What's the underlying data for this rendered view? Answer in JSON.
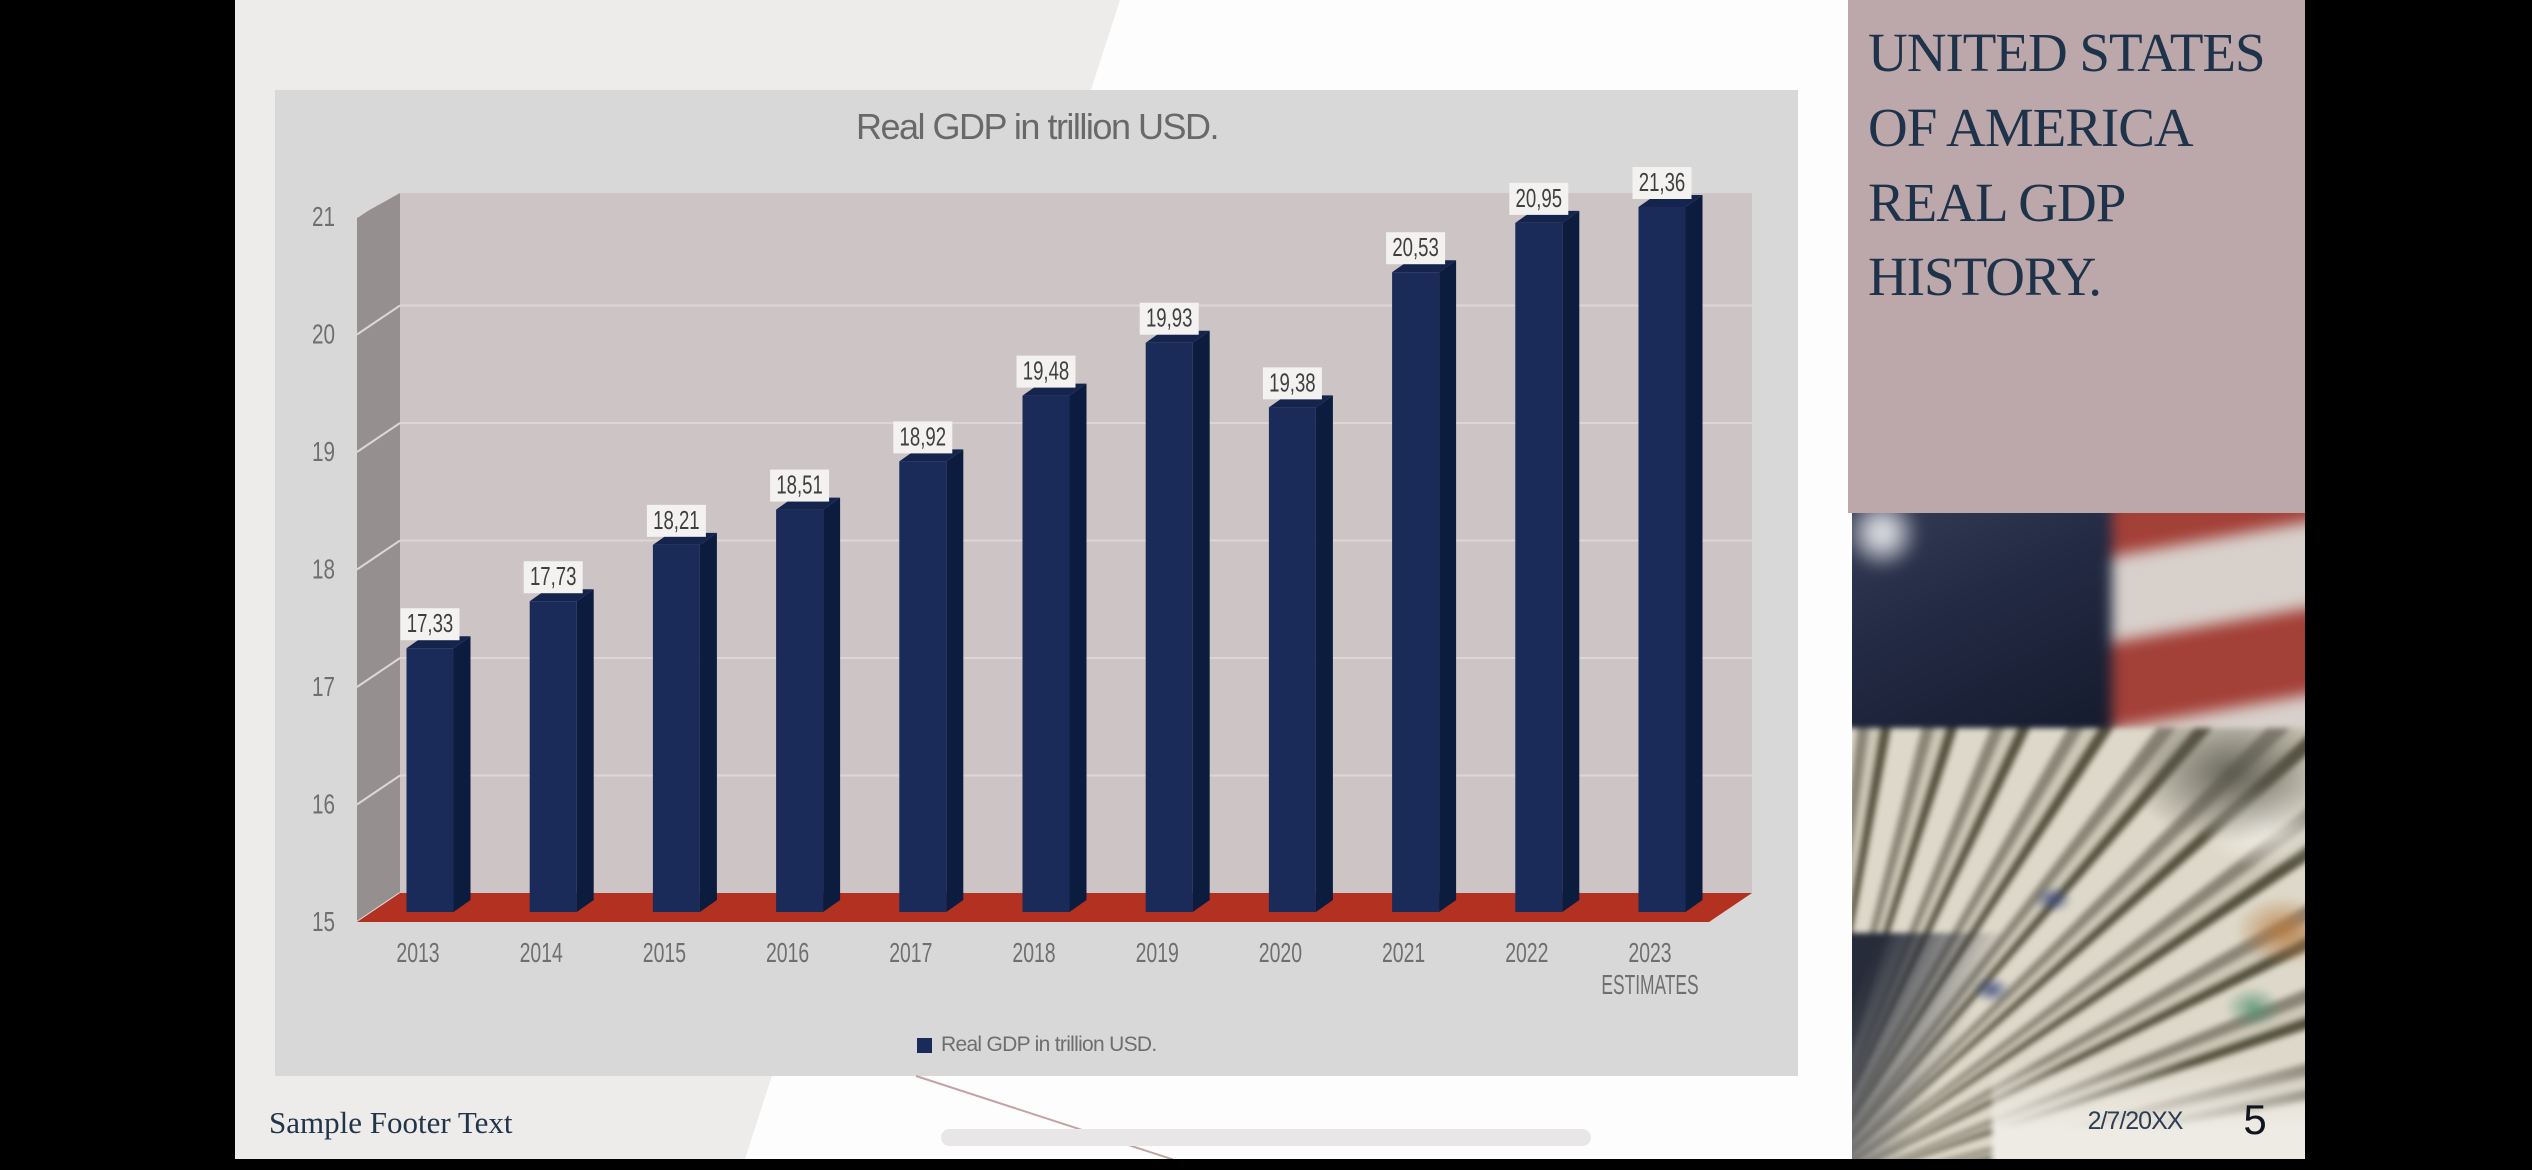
{
  "slide": {
    "side_title": "UNITED STATES OF AMERICA REAL GDP HISTORY.",
    "footer": "Sample Footer Text",
    "date": "2/7/20XX",
    "page_number": "5"
  },
  "chart_data": {
    "type": "bar",
    "style": "3d-column",
    "title": "Real GDP in trillion USD.",
    "legend": [
      "Real GDP in trillion USD."
    ],
    "legend_position": "bottom",
    "categories": [
      "2013",
      "2014",
      "2015",
      "2016",
      "2017",
      "2018",
      "2019",
      "2020",
      "2021",
      "2022",
      "2023\nESTIMATES"
    ],
    "values": [
      17.33,
      17.73,
      18.21,
      18.51,
      18.92,
      19.48,
      19.93,
      19.38,
      20.53,
      20.95,
      21.36
    ],
    "value_labels": [
      "17,33",
      "17,73",
      "18,21",
      "18,51",
      "18,92",
      "19,48",
      "19,93",
      "19,38",
      "20,53",
      "20,95",
      "21,36"
    ],
    "xlabel": "",
    "ylabel": "",
    "ylim": [
      15,
      21
    ],
    "yticks": [
      15,
      16,
      17,
      18,
      19,
      20,
      21
    ],
    "grid": true,
    "colors": {
      "bar_front": "#1b2b59",
      "bar_side": "#0c1c3f",
      "bar_top": "#15244d",
      "floor": "#b23120",
      "back_wall": "#cdc4c5",
      "side_wall": "#95908f",
      "gridline": "#ddd6d6",
      "panel": "#d9d8d8",
      "tick_text": "#6f6f6f",
      "chip_bg": "#f3f2f1",
      "chip_text": "#3f3f3f",
      "accent_mauve": "#bca7aa",
      "title_navy": "#1e3349"
    }
  }
}
